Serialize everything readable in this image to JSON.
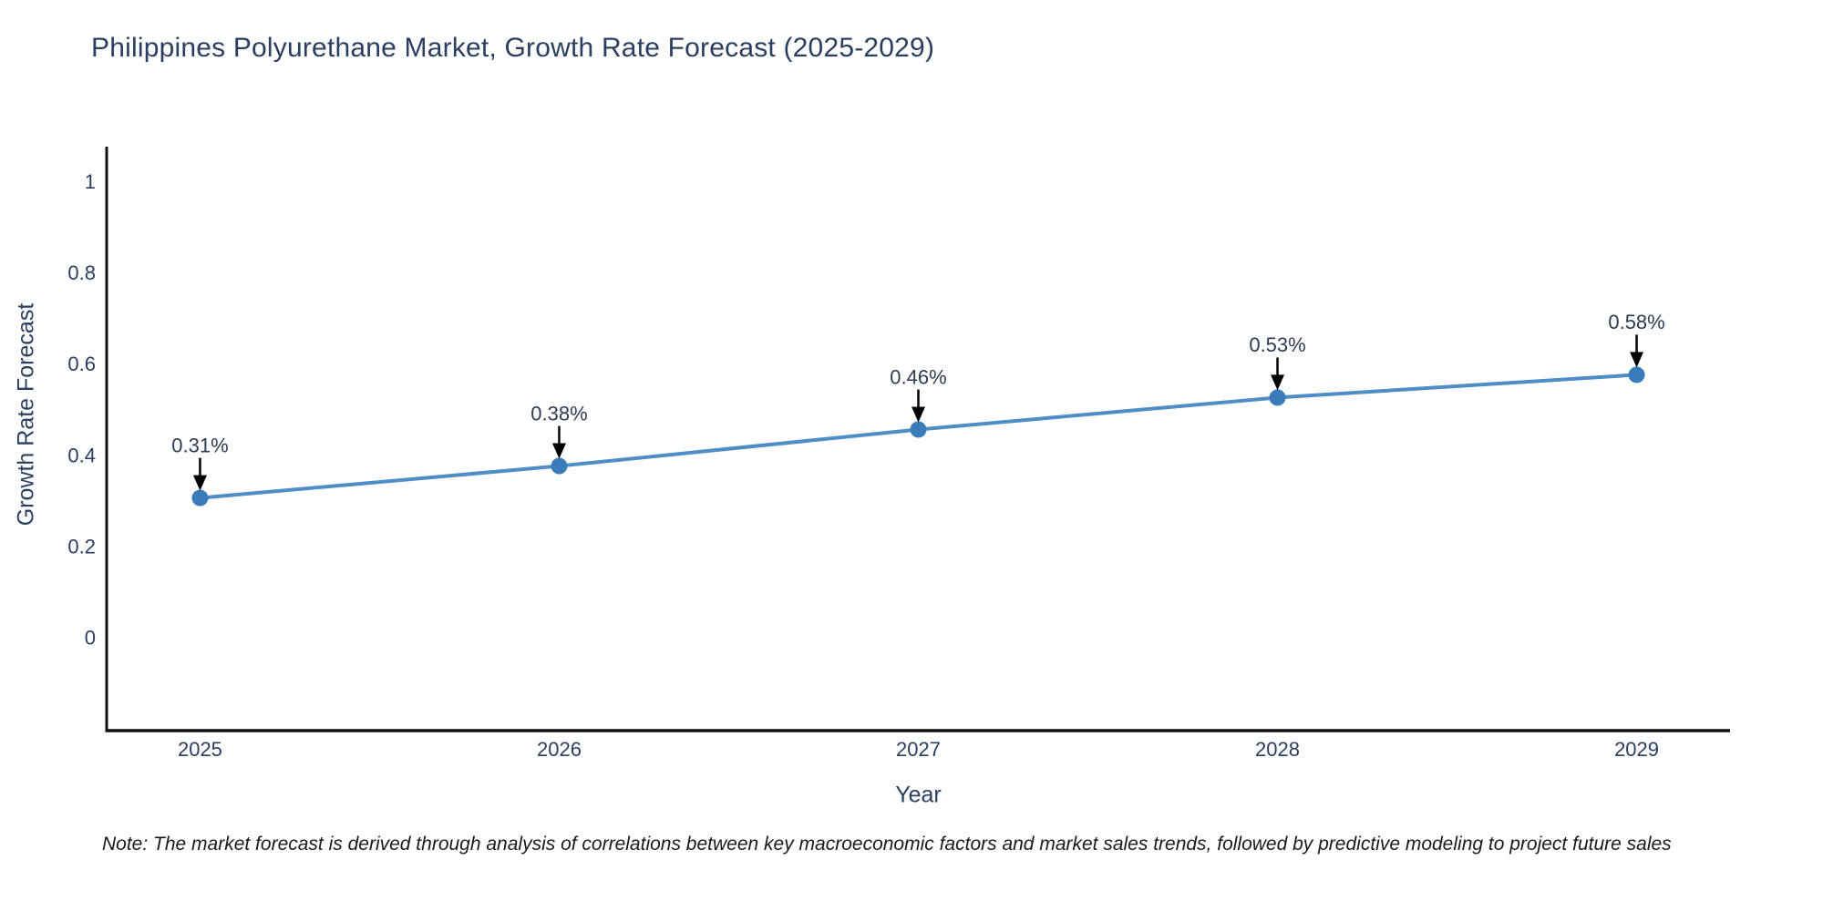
{
  "header": {
    "title": "Philippines Polyurethane Market, Growth Rate Forecast (2025-2029)"
  },
  "chart_data": {
    "type": "line",
    "title": "Philippines Polyurethane Market, Growth Rate Forecast (2025-2029)",
    "categories": [
      "2025",
      "2026",
      "2027",
      "2028",
      "2029"
    ],
    "x": [
      2025,
      2026,
      2027,
      2028,
      2029
    ],
    "values": [
      0.31,
      0.38,
      0.46,
      0.53,
      0.58
    ],
    "point_labels": [
      "0.31%",
      "0.38%",
      "0.46%",
      "0.53%",
      "0.58%"
    ],
    "xlabel": "Year",
    "ylabel": "Growth Rate Forecast",
    "y_ticks": [
      0,
      0.2,
      0.4,
      0.6,
      0.8,
      1
    ],
    "y_tick_labels": [
      "0",
      "0.2",
      "0.4",
      "0.6",
      "0.8",
      "1"
    ],
    "ylim": [
      -0.2,
      1.08
    ],
    "xlim": [
      2024.74,
      2029.26
    ],
    "grid": false,
    "legend": "none",
    "colors": {
      "line": "#4e8dc6",
      "marker": "#3a7cba",
      "axis": "#111111",
      "text": "#2a3f5f",
      "annotation_text": "#2f3b52",
      "arrow": "#000000"
    }
  },
  "footer": {
    "note": "Note: The market forecast is derived through analysis of correlations between key macroeconomic factors and market sales trends, followed by predictive modeling to project future sales"
  }
}
